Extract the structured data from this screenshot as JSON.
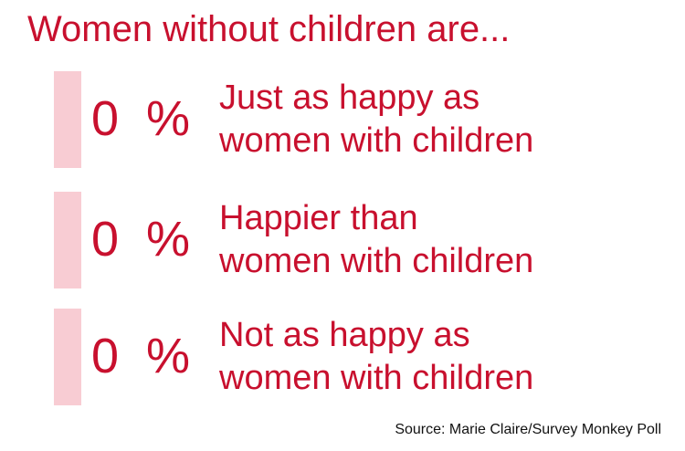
{
  "chart_data": {
    "type": "bar",
    "title": "Women without children are...",
    "categories": [
      [
        "Just as happy as",
        "women with children"
      ],
      [
        "Happier than",
        "women with children"
      ],
      [
        "Not as happy as",
        "women with children"
      ]
    ],
    "values": [
      0,
      0,
      0
    ],
    "unit": "%",
    "source": "Source: Marie Claire/Survey Monkey Poll"
  },
  "colors": {
    "text": "#c8102e",
    "bar": "#f8ccd3",
    "source": "#111111"
  }
}
